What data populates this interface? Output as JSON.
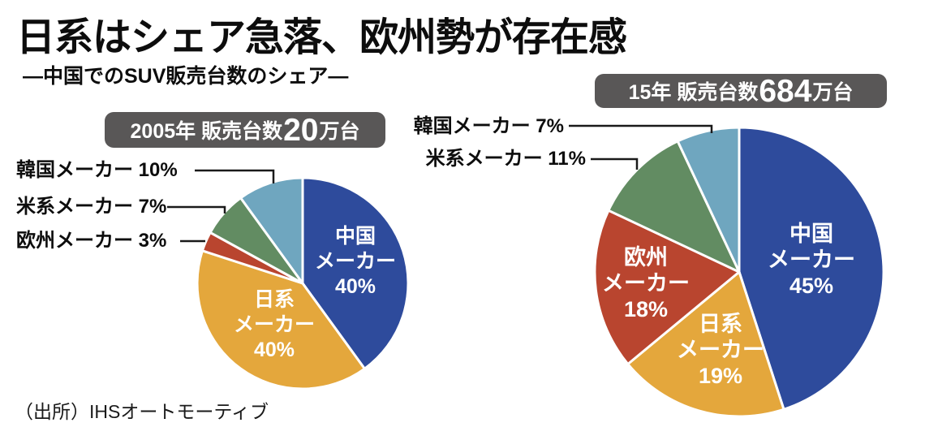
{
  "title": "日系はシェア急落、欧州勢が存在感",
  "subtitle": "―中国でのSUV販売台数のシェア―",
  "source": "（出所）IHSオートモーティブ",
  "colors": {
    "badge_bg": "#595757",
    "badge_text": "#FFFFFF",
    "leader_line": "#1A1A1A",
    "china_blue": "#2E4B9C",
    "japan_yellow": "#E4A73C",
    "europe_red": "#B9452F",
    "us_green": "#628C62",
    "korea_lightblue": "#6FA6BF"
  },
  "chart_data": [
    {
      "type": "pie",
      "title": "2005年 販売台数20万台",
      "badge": {
        "prefix": "2005年 販売台数",
        "big": "20",
        "suffix": "万台"
      },
      "start_angle_deg": 0,
      "direction": "clockwise",
      "slices": [
        {
          "id": "china",
          "name": "中国メーカー",
          "value": 40,
          "color": "#2E4B9C"
        },
        {
          "id": "japan",
          "name": "日系メーカー",
          "value": 40,
          "color": "#E4A73C"
        },
        {
          "id": "europe",
          "name": "欧州メーカー",
          "value": 3,
          "color": "#B9452F"
        },
        {
          "id": "us",
          "name": "米系メーカー",
          "value": 7,
          "color": "#628C62"
        },
        {
          "id": "korea",
          "name": "韓国メーカー",
          "value": 10,
          "color": "#6FA6BF"
        }
      ],
      "inside_labels": [
        {
          "id": "china",
          "lines": [
            "中国",
            "メーカー",
            "40%"
          ]
        },
        {
          "id": "japan",
          "lines": [
            "日系",
            "メーカー",
            "40%"
          ]
        }
      ],
      "outside_labels": [
        "韓国メーカー 10%",
        "米系メーカー 7%",
        "欧州メーカー 3%"
      ]
    },
    {
      "type": "pie",
      "title": "15年 販売台数684万台",
      "badge": {
        "prefix": "15年 販売台数",
        "big": "684",
        "suffix": "万台"
      },
      "start_angle_deg": 0,
      "direction": "clockwise",
      "slices": [
        {
          "id": "china",
          "name": "中国メーカー",
          "value": 45,
          "color": "#2E4B9C"
        },
        {
          "id": "japan",
          "name": "日系メーカー",
          "value": 19,
          "color": "#E4A73C"
        },
        {
          "id": "europe",
          "name": "欧州メーカー",
          "value": 18,
          "color": "#B9452F"
        },
        {
          "id": "us",
          "name": "米系メーカー",
          "value": 11,
          "color": "#628C62"
        },
        {
          "id": "korea",
          "name": "韓国メーカー",
          "value": 7,
          "color": "#6FA6BF"
        }
      ],
      "inside_labels": [
        {
          "id": "china",
          "lines": [
            "中国",
            "メーカー",
            "45%"
          ]
        },
        {
          "id": "japan",
          "lines": [
            "日系",
            "メーカー",
            "19%"
          ]
        },
        {
          "id": "europe",
          "lines": [
            "欧州",
            "メーカー",
            "18%"
          ]
        }
      ],
      "outside_labels": [
        "韓国メーカー 7%",
        "米系メーカー 11%"
      ]
    }
  ]
}
